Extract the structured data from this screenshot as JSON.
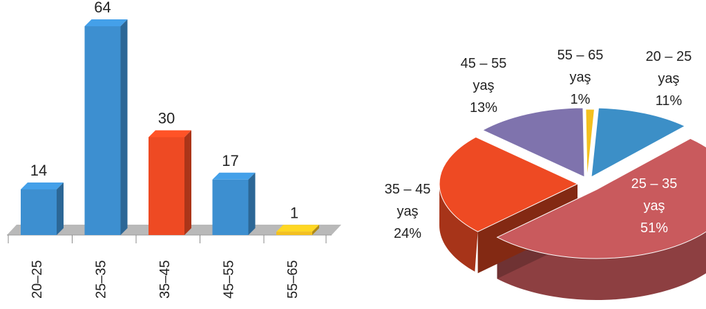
{
  "chart_data": [
    {
      "type": "bar",
      "categories": [
        "20–25",
        "25–35",
        "35–45",
        "45–55",
        "55–65"
      ],
      "values": [
        14,
        64,
        30,
        17,
        1
      ],
      "colors": [
        "#3d8fd0",
        "#3d8fd0",
        "#ee4a23",
        "#3d8fd0",
        "#f4c01e"
      ],
      "ylim": [
        0,
        64
      ],
      "grid": false,
      "legend": "none"
    },
    {
      "type": "pie",
      "slices": [
        {
          "line1": "20 – 25",
          "line2": "yaş",
          "percent": "11%",
          "value": 11,
          "color": "#3c8fc7"
        },
        {
          "line1": "25 – 35",
          "line2": "yaş",
          "percent": "51%",
          "value": 51,
          "color": "#c95a5d"
        },
        {
          "line1": "35 – 45",
          "line2": "yaş",
          "percent": "24%",
          "value": 24,
          "color": "#ee4a23"
        },
        {
          "line1": "45 – 55",
          "line2": "yaş",
          "percent": "13%",
          "value": 13,
          "color": "#7f73ad"
        },
        {
          "line1": "55 – 65",
          "line2": "yaş",
          "percent": "1%",
          "value": 1,
          "color": "#f4c01e"
        }
      ],
      "legend": "none"
    }
  ]
}
